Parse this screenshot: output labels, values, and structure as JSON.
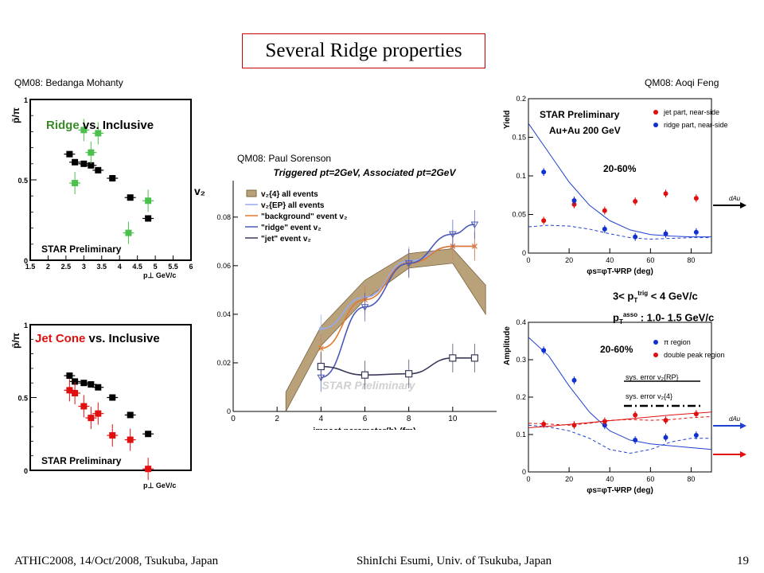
{
  "slide": {
    "title": "Several Ridge properties",
    "credits": {
      "left": "QM08: Bedanga Mohanty",
      "middle": "QM08: Paul Sorenson",
      "right": "QM08: Aoqi Feng"
    },
    "footer": {
      "left": "ATHIC2008, 14/Oct/2008, Tsukuba, Japan",
      "center": "ShinIchi Esumi, Univ. of Tsukuba, Japan",
      "page": "19"
    },
    "cut_lines": {
      "line1": "3< p",
      "line1_sub": "T",
      "line1_sup": "trig",
      "line1_rest": " < 4 GeV/c",
      "line2": "p",
      "line2_sub": "T",
      "line2_sup": "asso",
      "line2_rest": " : 1.0- 1.5 GeV/c"
    }
  },
  "chart_data": [
    {
      "id": "ridge-vs-inclusive",
      "type": "scatter",
      "title_part1": "Ridge",
      "title_part2": " vs. Inclusive",
      "title_part1_color": "#3a8a2a",
      "ylabel": "p̄/π",
      "y2label": "v₂",
      "xlabel": "p⊥ GeV/c",
      "annotation": "STAR Preliminary",
      "xlim": [
        1.5,
        6.0
      ],
      "ylim": [
        0,
        1.0
      ],
      "x_ticks": [
        "1.5",
        "2",
        "2.5",
        "3",
        "3.5",
        "4",
        "4.5",
        "5",
        "5.5",
        "6"
      ],
      "y_ticks": [
        "0",
        "0.5",
        "1"
      ],
      "series": [
        {
          "color": "#000000",
          "x": [
            2.6,
            2.75,
            3.0,
            3.2,
            3.4,
            3.8,
            4.3,
            4.8
          ],
          "y": [
            0.66,
            0.61,
            0.6,
            0.59,
            0.56,
            0.51,
            0.39,
            0.26
          ]
        },
        {
          "color": "#4cc04c",
          "x": [
            2.75,
            3.0,
            3.2,
            3.4,
            4.25,
            4.8
          ],
          "y": [
            0.48,
            0.81,
            0.67,
            0.79,
            0.17,
            0.37
          ]
        }
      ]
    },
    {
      "id": "jetcone-vs-inclusive",
      "type": "scatter",
      "title_part1": "Jet Cone",
      "title_part2": " vs. Inclusive",
      "title_part1_color": "#e01010",
      "ylabel": "p̄/π",
      "xlabel": "p⊥ GeV/c",
      "annotation": "STAR Preliminary",
      "xlim": [
        1.5,
        6.0
      ],
      "ylim": [
        0,
        1.0
      ],
      "y_ticks": [
        "0",
        "0.5",
        "1"
      ],
      "series": [
        {
          "color": "#000000",
          "x": [
            2.6,
            2.75,
            3.0,
            3.2,
            3.4,
            3.8,
            4.3,
            4.8
          ],
          "y": [
            0.65,
            0.61,
            0.6,
            0.59,
            0.57,
            0.5,
            0.38,
            0.25
          ]
        },
        {
          "color": "#e01010",
          "x": [
            2.6,
            2.75,
            3.0,
            3.2,
            3.4,
            3.8,
            4.3,
            4.8
          ],
          "y": [
            0.55,
            0.53,
            0.44,
            0.36,
            0.39,
            0.24,
            0.21,
            0.01
          ]
        }
      ]
    },
    {
      "id": "v2-vs-impact-parameter",
      "type": "line",
      "title": "Triggered pt=2GeV, Associated pt=2GeV",
      "xlabel": "impact parameter(b) (fm)",
      "annotation": "STAR Preliminary",
      "xlim": [
        0,
        12
      ],
      "ylim": [
        0,
        0.095
      ],
      "x_ticks": [
        0,
        2,
        4,
        6,
        8,
        10
      ],
      "y_ticks": [
        "0",
        "0.02",
        "0.04",
        "0.06",
        "0.08"
      ],
      "band": {
        "name": "v₂{4} all events",
        "color": "#b9a27a",
        "x": [
          2.4,
          4,
          6,
          8,
          10,
          11.5
        ],
        "y_low": [
          0.0,
          0.027,
          0.046,
          0.059,
          0.061,
          0.04
        ],
        "y_high": [
          0.008,
          0.035,
          0.054,
          0.065,
          0.067,
          0.052
        ]
      },
      "series": [
        {
          "name": "v₂{EP} all events",
          "color": "#9aa8ee",
          "marker": "star",
          "x": [
            4,
            6,
            8,
            10,
            11
          ],
          "y": [
            0.034,
            0.047,
            0.062,
            0.068,
            0.068
          ]
        },
        {
          "name": "\"background\" event v₂",
          "color": "#e07a30",
          "marker": "x",
          "x": [
            4,
            6,
            8,
            10,
            11
          ],
          "y": [
            0.026,
            0.046,
            0.061,
            0.068,
            0.068
          ]
        },
        {
          "name": "\"ridge\" event v₂",
          "color": "#4a5ab8",
          "marker": "triangle",
          "x": [
            4,
            6,
            8,
            10,
            11
          ],
          "y": [
            0.014,
            0.043,
            0.061,
            0.073,
            0.077
          ]
        },
        {
          "name": "\"jet\" event v₂",
          "color": "#3a3a5a",
          "marker": "square",
          "x": [
            4,
            6,
            8,
            10,
            11
          ],
          "y": [
            0.0185,
            0.015,
            0.0155,
            0.022,
            0.022
          ]
        }
      ]
    },
    {
      "id": "yield-vs-dphi",
      "type": "scatter",
      "ylabel": "Yield",
      "xlabel": "φs=φT-ΨRP (deg)",
      "annotations": [
        "STAR Preliminary",
        "Au+Au 200 GeV",
        "20-60%"
      ],
      "arrow_label": "dAu",
      "xlim": [
        0,
        90
      ],
      "ylim": [
        0,
        0.2
      ],
      "x_ticks": [
        0,
        20,
        40,
        60,
        80
      ],
      "y_ticks": [
        "0",
        "0.05",
        "0.1",
        "0.15",
        "0.2"
      ],
      "series": [
        {
          "name": "jet part, near-side",
          "color": "#e01010",
          "x": [
            7.5,
            22.5,
            37.5,
            52.5,
            67.5,
            82.5
          ],
          "y": [
            0.042,
            0.063,
            0.055,
            0.067,
            0.077,
            0.071
          ]
        },
        {
          "name": "ridge part, near-side",
          "color": "#1030d0",
          "x": [
            7.5,
            22.5,
            37.5,
            52.5,
            67.5,
            82.5
          ],
          "y": [
            0.105,
            0.068,
            0.031,
            0.021,
            0.025,
            0.027
          ]
        }
      ]
    },
    {
      "id": "amplitude-vs-dphi",
      "type": "scatter",
      "ylabel": "Amplitude",
      "xlabel": "φs=φT-ΨRP (deg)",
      "annotations": [
        "20-60%",
        "sys. error v₂{RP}",
        "sys. error v₂{4}"
      ],
      "arrow_label": "dAu",
      "xlim": [
        0,
        90
      ],
      "ylim": [
        0,
        0.4
      ],
      "x_ticks": [
        0,
        20,
        40,
        60,
        80
      ],
      "y_ticks": [
        "0",
        "0.1",
        "0.2",
        "0.3",
        "0.4"
      ],
      "series": [
        {
          "name": "π region",
          "color": "#1030d0",
          "x": [
            7.5,
            22.5,
            37.5,
            52.5,
            67.5,
            82.5
          ],
          "y": [
            0.325,
            0.245,
            0.125,
            0.085,
            0.092,
            0.098
          ]
        },
        {
          "name": "double peak region",
          "color": "#e01010",
          "x": [
            7.5,
            22.5,
            37.5,
            52.5,
            67.5,
            82.5
          ],
          "y": [
            0.128,
            0.125,
            0.135,
            0.152,
            0.138,
            0.155
          ]
        }
      ]
    }
  ]
}
